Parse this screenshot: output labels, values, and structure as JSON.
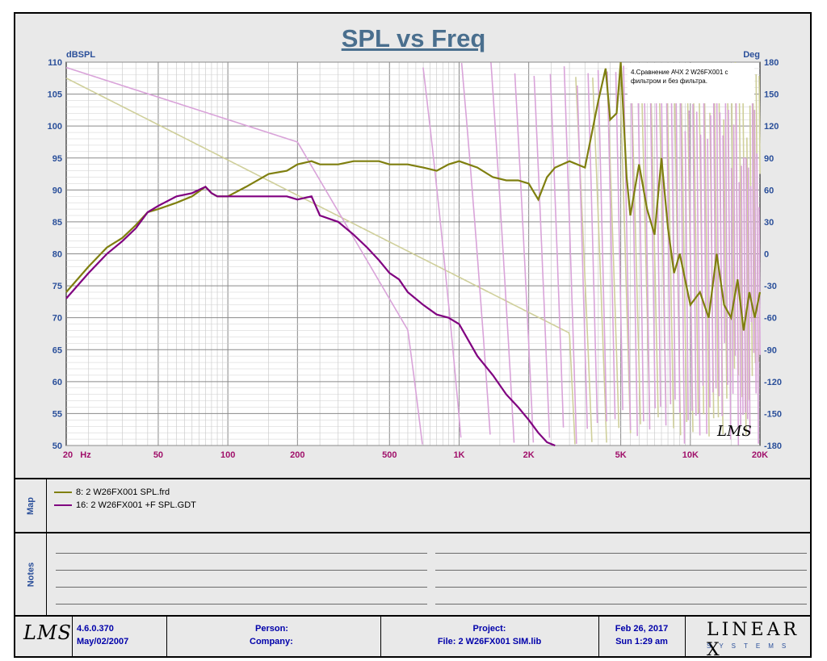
{
  "title": "SPL vs Freq",
  "chart_data": {
    "type": "line",
    "title": "SPL vs Freq",
    "xlabel": "Hz",
    "ylabel": "dBSPL",
    "ylabel_right": "Deg",
    "xscale": "log",
    "xlim": [
      20,
      20000
    ],
    "ylim": [
      50,
      110
    ],
    "ylim_right": [
      -180,
      180
    ],
    "grid": true,
    "x_tick_labels": [
      "20",
      "50",
      "100",
      "200",
      "500",
      "1K",
      "2K",
      "5K",
      "10K",
      "20K"
    ],
    "x_ticks": [
      20,
      50,
      100,
      200,
      500,
      1000,
      2000,
      5000,
      10000,
      20000
    ],
    "x_unit_label": "Hz",
    "y_ticks": [
      50,
      55,
      60,
      65,
      70,
      75,
      80,
      85,
      90,
      95,
      100,
      105,
      110
    ],
    "y_right_ticks": [
      -180,
      -150,
      -120,
      -90,
      -60,
      -30,
      0,
      30,
      60,
      90,
      120,
      150,
      180
    ],
    "annotation": "4.Сравнение  АЧХ 2 W26FX001 с фильтром и без фильтра.",
    "colors": {
      "spl_frd": "#7f7f0f",
      "phase_frd": "#cfcf9a",
      "spl_gdt": "#800080",
      "phase_gdt": "#d9a3d9",
      "grid": "#9a9a9a",
      "axis_text": "#2a4f9a",
      "magenta_text": "#a0106a"
    },
    "series": [
      {
        "name": "8: 2  W26FX001 SPL.frd",
        "color": "#7f7f0f",
        "x": [
          20,
          25,
          30,
          35,
          40,
          45,
          50,
          60,
          70,
          80,
          85,
          90,
          100,
          120,
          150,
          180,
          200,
          230,
          250,
          300,
          350,
          400,
          450,
          500,
          550,
          600,
          700,
          800,
          900,
          1000,
          1200,
          1400,
          1600,
          1800,
          2000,
          2200,
          2400,
          2600,
          3000,
          3500,
          4000,
          4300,
          4500,
          4800,
          5000,
          5300,
          5500,
          6000,
          6500,
          7000,
          7500,
          8000,
          8500,
          9000,
          10000,
          11000,
          12000,
          13000,
          14000,
          15000,
          16000,
          17000,
          18000,
          19000,
          20000
        ],
        "values": [
          74,
          78,
          81,
          82.5,
          84.5,
          86.5,
          87,
          88,
          89,
          90.5,
          89.5,
          89,
          89,
          90.5,
          92.5,
          93,
          94,
          94.5,
          94,
          94,
          94.5,
          94.5,
          94.5,
          94,
          94,
          94,
          93.5,
          93,
          94,
          94.5,
          93.5,
          92,
          91.5,
          91.5,
          91,
          88.5,
          92,
          93.5,
          94.5,
          93.5,
          104,
          109,
          101,
          102,
          110,
          92,
          86,
          94,
          87,
          83,
          95,
          84,
          77,
          80,
          72,
          74,
          70,
          80,
          72,
          70,
          76,
          68,
          74,
          70,
          74
        ]
      },
      {
        "name": "16: 2  W26FX001 +F SPL.GDT",
        "color": "#800080",
        "x": [
          20,
          25,
          30,
          35,
          40,
          45,
          50,
          60,
          70,
          80,
          85,
          90,
          100,
          120,
          150,
          180,
          200,
          230,
          250,
          300,
          350,
          400,
          450,
          500,
          550,
          600,
          700,
          800,
          900,
          1000,
          1200,
          1400,
          1600,
          1800,
          2000,
          2200,
          2400,
          2600
        ],
        "values": [
          73,
          77,
          80,
          82,
          84,
          86.5,
          87.5,
          89,
          89.5,
          90.5,
          89.5,
          89,
          89,
          89,
          89,
          89,
          88.5,
          89,
          86,
          85,
          83,
          81,
          79,
          77,
          76,
          74,
          72,
          70.5,
          70,
          69,
          64,
          61,
          58,
          56,
          54,
          52,
          50.5,
          50
        ]
      }
    ]
  },
  "map_panel": {
    "label": "Map",
    "legend": [
      {
        "text": "8: 2  W26FX001 SPL.frd",
        "color": "#7f7f0f"
      },
      {
        "text": "16: 2  W26FX001 +F SPL.GDT",
        "color": "#800080"
      }
    ]
  },
  "notes_panel": {
    "label": "Notes"
  },
  "footer": {
    "version": "4.6.0.370",
    "version_date": "May/02/2007",
    "person_label": "Person:",
    "company_label": "Company:",
    "project_label": "Project:",
    "file_label": "File: 2 W26FX001 SIM.lib",
    "date": "Feb 26, 2017",
    "time": "Sun  1:29 am",
    "logo_lms": "LMS",
    "logo_linearx": "LINEAR X",
    "logo_systems": "SYSTEMS"
  },
  "plot_logo": "LMS"
}
